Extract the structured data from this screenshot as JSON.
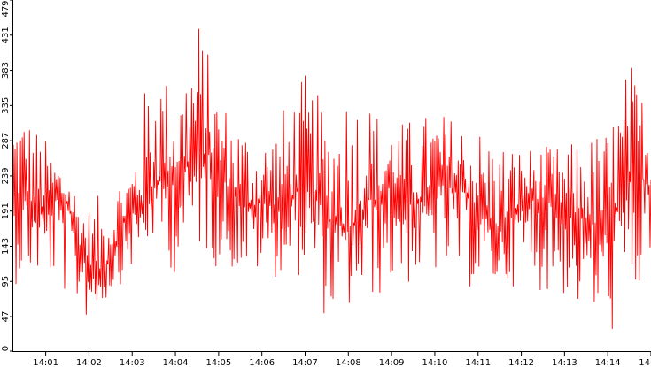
{
  "chart_data": {
    "type": "line",
    "title": "",
    "xlabel": "",
    "ylabel": "",
    "ylim": [
      0,
      479
    ],
    "yticks": [
      0,
      47,
      95,
      143,
      191,
      239,
      287,
      335,
      383,
      431,
      479
    ],
    "xticks": [
      "14:01",
      "14:02",
      "14:03",
      "14:04",
      "14:05",
      "14:06",
      "14:07",
      "14:08",
      "14:09",
      "14:10",
      "14:11",
      "14:12",
      "14:13",
      "14:14",
      "14"
    ],
    "xtick_minutes": [
      1,
      2,
      3,
      4,
      5,
      6,
      7,
      8,
      9,
      10,
      11,
      12,
      13,
      14,
      15
    ],
    "xlim_minutes": [
      0.25,
      15.0
    ],
    "x_start": "14:00:15",
    "x_end": "14:15:00",
    "samples_per_minute": 48,
    "trend": {
      "minutes": [
        0.25,
        0.5,
        0.75,
        1.0,
        1.25,
        1.5,
        1.75,
        2.0,
        2.25,
        2.5,
        2.75,
        3.0,
        3.25,
        3.5,
        3.75,
        4.0,
        4.25,
        4.5,
        4.75,
        5.0,
        5.25,
        5.5,
        5.75,
        6.0,
        6.25,
        6.5,
        6.75,
        7.0,
        7.25,
        7.5,
        7.75,
        8.0,
        8.25,
        8.5,
        8.75,
        9.0,
        9.25,
        9.5,
        9.75,
        10.0,
        10.25,
        10.5,
        10.75,
        11.0,
        11.25,
        11.5,
        11.75,
        12.0,
        12.25,
        12.5,
        12.75,
        13.0,
        13.25,
        13.5,
        13.75,
        14.0,
        14.25,
        14.5,
        14.75,
        15.0
      ],
      "values": [
        200,
        215,
        195,
        190,
        210,
        200,
        150,
        120,
        105,
        130,
        170,
        190,
        200,
        220,
        245,
        240,
        250,
        265,
        270,
        250,
        220,
        210,
        195,
        205,
        200,
        195,
        215,
        225,
        215,
        180,
        175,
        165,
        185,
        210,
        200,
        230,
        215,
        200,
        205,
        230,
        225,
        220,
        215,
        195,
        175,
        165,
        180,
        200,
        210,
        205,
        200,
        195,
        185,
        180,
        170,
        160,
        200,
        230,
        240,
        220
      ]
    },
    "envelope": {
      "minutes": [
        0.25,
        1.0,
        2.0,
        3.0,
        3.5,
        4.0,
        4.5,
        5.0,
        6.0,
        7.0,
        7.5,
        8.0,
        9.0,
        10.0,
        11.0,
        12.0,
        13.0,
        14.0,
        14.5,
        15.0
      ],
      "max": [
        360,
        290,
        200,
        260,
        430,
        340,
        470,
        350,
        290,
        380,
        330,
        380,
        310,
        330,
        310,
        280,
        280,
        310,
        400,
        330
      ],
      "min": [
        90,
        100,
        40,
        110,
        150,
        100,
        140,
        110,
        100,
        100,
        40,
        50,
        80,
        100,
        80,
        90,
        70,
        20,
        30,
        110
      ]
    },
    "series": [
      {
        "color": "#ff0000"
      }
    ],
    "grid": false,
    "legend": "none"
  }
}
